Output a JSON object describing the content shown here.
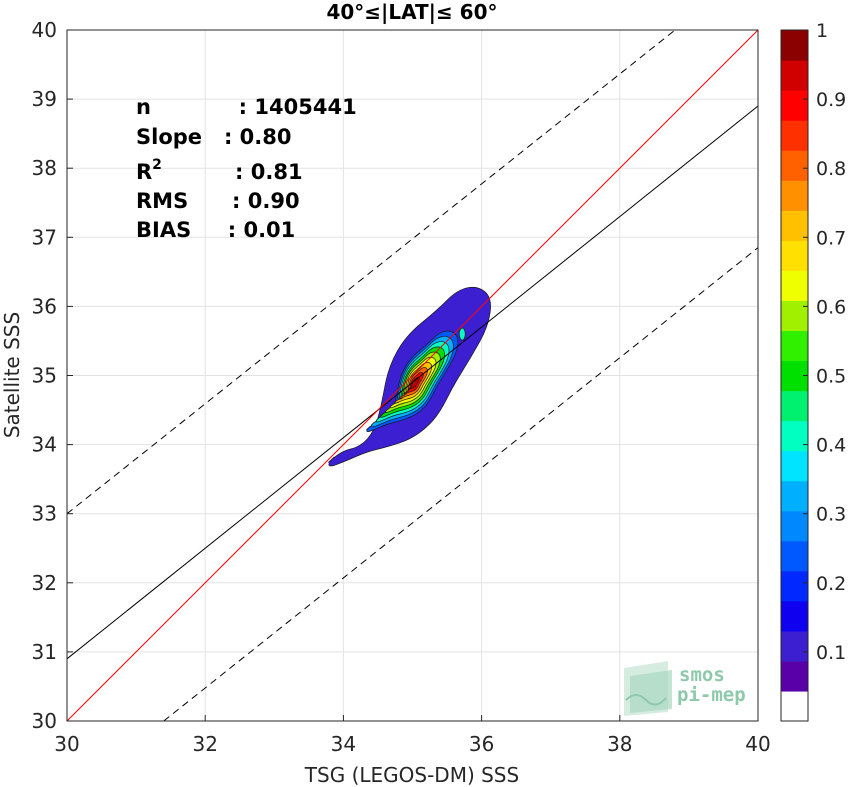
{
  "chart_data": {
    "type": "heatmap",
    "title": "40°≤|LAT|≤ 60°",
    "xlabel": "TSG (LEGOS-DM) SSS",
    "ylabel": "Satellite SSS",
    "xlim": [
      30,
      40
    ],
    "ylim": [
      30,
      40
    ],
    "xticks": [
      "30",
      "32",
      "34",
      "36",
      "38",
      "40"
    ],
    "yticks": [
      "30",
      "31",
      "32",
      "33",
      "34",
      "35",
      "36",
      "37",
      "38",
      "39",
      "40"
    ],
    "grid": true,
    "stats": {
      "n": "n            : 1405441",
      "slope": "Slope   : 0.80",
      "r2_base": "R",
      "r2_sup": "2",
      "r2_val": "          : 0.81",
      "rms": "RMS      : 0.90",
      "bias": "BIAS     : 0.01"
    },
    "lines": {
      "identity": {
        "x": [
          30,
          40
        ],
        "y": [
          30,
          40
        ],
        "color": "#ff0000"
      },
      "regression": {
        "x": [
          30,
          40
        ],
        "y": [
          30.9,
          38.9
        ],
        "color": "#000000"
      },
      "upper_bound": {
        "x": [
          30,
          38.8
        ],
        "y": [
          33.0,
          40.0
        ],
        "color": "#000000",
        "style": "dashed"
      },
      "lower_bound": {
        "x": [
          31.4,
          40
        ],
        "y": [
          30.0,
          36.85
        ],
        "color": "#000000",
        "style": "dashed"
      }
    },
    "density_center": {
      "x": 35.0,
      "y": 34.92
    },
    "colorbar": {
      "range": [
        0,
        1
      ],
      "ticks": [
        "0.1",
        "0.2",
        "0.3",
        "0.4",
        "0.5",
        "0.6",
        "0.7",
        "0.8",
        "0.9",
        "1"
      ],
      "tick_values": [
        0.1,
        0.2,
        0.3,
        0.4,
        0.5,
        0.6,
        0.7,
        0.8,
        0.9,
        1.0
      ],
      "colors": [
        "#ffffff",
        "#5a00a8",
        "#3d1fd2",
        "#1000f0",
        "#0028ff",
        "#0058ff",
        "#0088ff",
        "#00b0ff",
        "#00e4ff",
        "#00ffc0",
        "#00f070",
        "#00e000",
        "#30f000",
        "#a0f000",
        "#f0ff00",
        "#ffe000",
        "#ffc000",
        "#ff9000",
        "#ff6000",
        "#ff3000",
        "#ff0000",
        "#d00000",
        "#8b0000"
      ]
    },
    "contour_colors": [
      "#3d1fd2",
      "#0058ff",
      "#00b0ff",
      "#00ffc0",
      "#00e000",
      "#a0f000",
      "#f0ff00",
      "#ffc000",
      "#ff6000",
      "#ff0000",
      "#b80000"
    ],
    "watermark": {
      "line1": "smos",
      "line2": "pi-mep"
    }
  }
}
